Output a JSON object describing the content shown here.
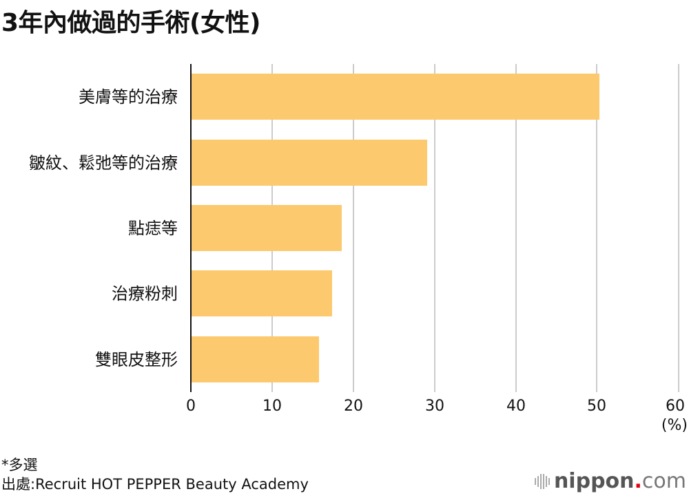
{
  "title": "3年內做過的手術(女性)",
  "chart_data": {
    "type": "bar",
    "orientation": "horizontal",
    "title": "3年內做過的手術(女性)",
    "categories": [
      "美膚等的治療",
      "皺紋、鬆弛等的治療",
      "點痣等",
      "治療粉刺",
      "雙眼皮整形"
    ],
    "values": [
      50.3,
      29.1,
      18.6,
      17.4,
      15.8
    ],
    "xlabel": "(%)",
    "ylabel": "",
    "xlim": [
      0,
      60
    ],
    "xticks": [
      0,
      10,
      20,
      30,
      40,
      50,
      60
    ],
    "grid": true,
    "bar_color": "#fcc96e"
  },
  "axis": {
    "ticks": [
      "0",
      "10",
      "20",
      "30",
      "40",
      "50",
      "60"
    ],
    "unit": "(%)"
  },
  "footer": {
    "note": "*多選",
    "source": "出處:Recruit HOT PEPPER Beauty Academy"
  },
  "logo": {
    "name": "nippon",
    "dot": ".",
    "tld": "com"
  }
}
